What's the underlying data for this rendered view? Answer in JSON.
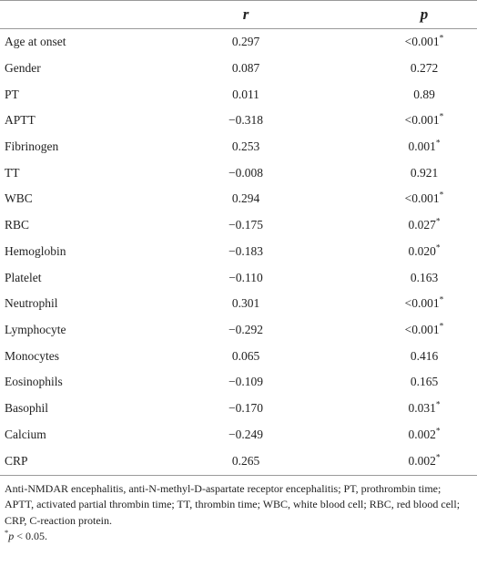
{
  "headers": {
    "name": "",
    "r": "r",
    "p": "p"
  },
  "rows": [
    {
      "name": "Age at onset",
      "r": "0.297",
      "p": "<0.001*"
    },
    {
      "name": "Gender",
      "r": "0.087",
      "p": "0.272"
    },
    {
      "name": "PT",
      "r": "0.011",
      "p": "0.89"
    },
    {
      "name": "APTT",
      "r": "−0.318",
      "p": "<0.001*"
    },
    {
      "name": "Fibrinogen",
      "r": "0.253",
      "p": "0.001*"
    },
    {
      "name": "TT",
      "r": "−0.008",
      "p": "0.921"
    },
    {
      "name": "WBC",
      "r": "0.294",
      "p": "<0.001*"
    },
    {
      "name": "RBC",
      "r": "−0.175",
      "p": "0.027*"
    },
    {
      "name": "Hemoglobin",
      "r": "−0.183",
      "p": "0.020*"
    },
    {
      "name": "Platelet",
      "r": "−0.110",
      "p": "0.163"
    },
    {
      "name": "Neutrophil",
      "r": "0.301",
      "p": "<0.001*"
    },
    {
      "name": "Lymphocyte",
      "r": "−0.292",
      "p": "<0.001*"
    },
    {
      "name": "Monocytes",
      "r": "0.065",
      "p": "0.416"
    },
    {
      "name": "Eosinophils",
      "r": "−0.109",
      "p": "0.165"
    },
    {
      "name": "Basophil",
      "r": "−0.170",
      "p": "0.031*"
    },
    {
      "name": "Calcium",
      "r": "−0.249",
      "p": "0.002*"
    },
    {
      "name": "CRP",
      "r": "0.265",
      "p": "0.002*"
    }
  ],
  "footnote": {
    "abbreviations": "Anti-NMDAR encephalitis, anti-N-methyl-D-aspartate receptor encephalitis; PT, prothrombin time; APTT, activated partial thrombin time; TT, thrombin time; WBC, white blood cell; RBC, red blood cell; CRP, C-reaction protein.",
    "sig_marker": "*",
    "sig_p": "p",
    "sig_text": " < 0.05."
  }
}
